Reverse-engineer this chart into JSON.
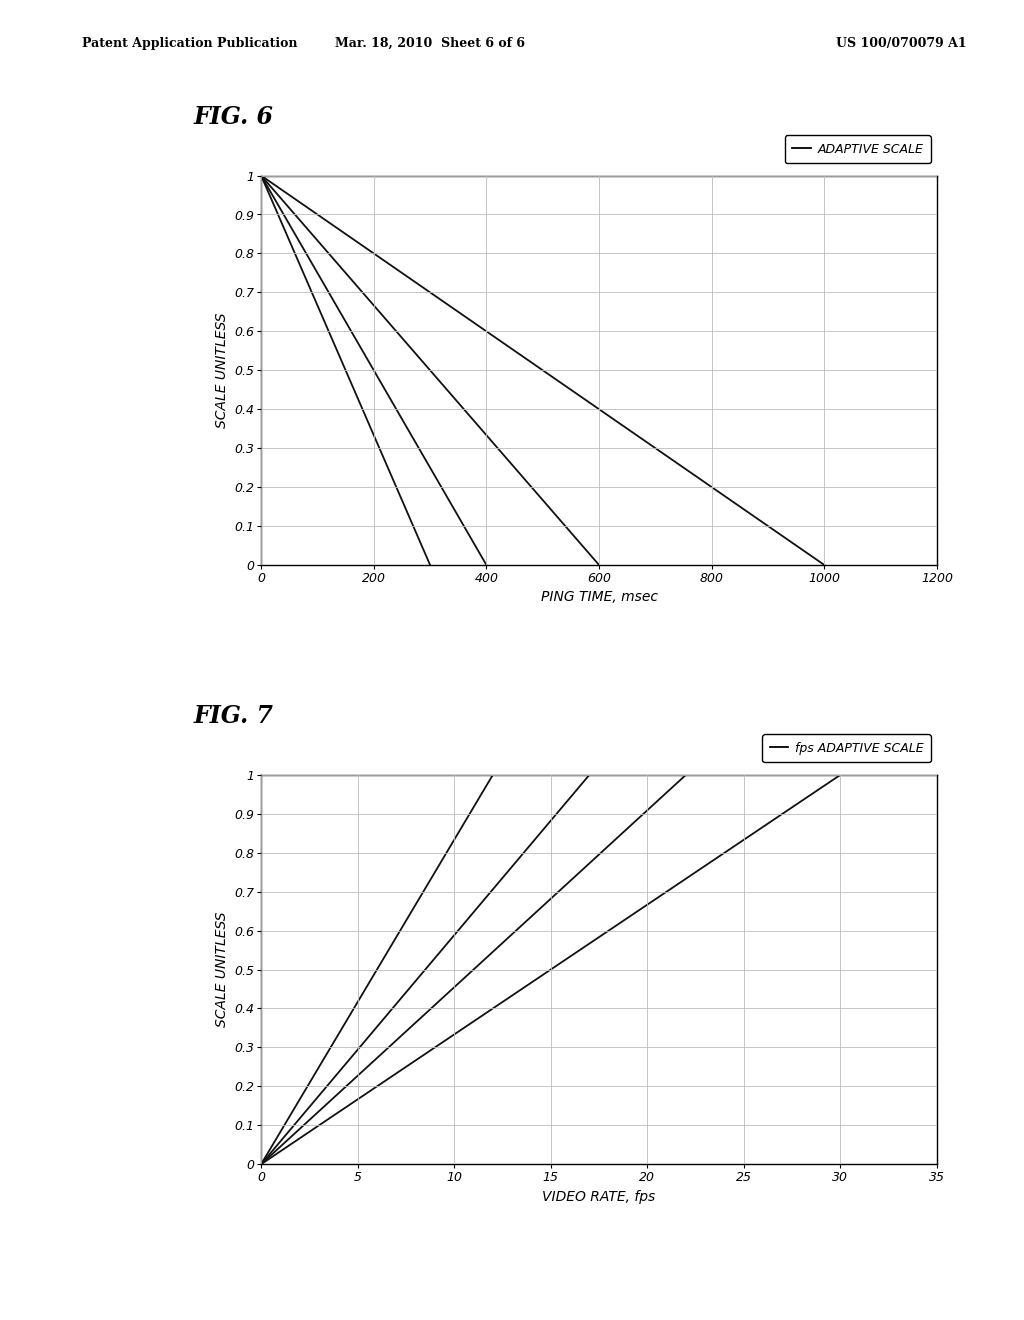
{
  "fig6": {
    "title": "FIG. 6",
    "legend_label": "ADAPTIVE SCALE",
    "xlabel": "PING TIME, msec",
    "ylabel": "SCALE UNITLESS",
    "xlim": [
      0,
      1200
    ],
    "ylim": [
      0,
      1
    ],
    "xticks": [
      0,
      200,
      400,
      600,
      800,
      1000,
      1200
    ],
    "yticks": [
      0,
      0.1,
      0.2,
      0.3,
      0.4,
      0.5,
      0.6,
      0.7,
      0.8,
      0.9,
      1.0
    ],
    "lines": [
      {
        "x": [
          0,
          300
        ],
        "y": [
          1,
          0
        ]
      },
      {
        "x": [
          0,
          400
        ],
        "y": [
          1,
          0
        ]
      },
      {
        "x": [
          0,
          600
        ],
        "y": [
          1,
          0
        ]
      },
      {
        "x": [
          0,
          1000
        ],
        "y": [
          1,
          0
        ]
      }
    ]
  },
  "fig7": {
    "title": "FIG. 7",
    "legend_label": "fps ADAPTIVE SCALE",
    "xlabel": "VIDEO RATE, fps",
    "ylabel": "SCALE UNITLESS",
    "xlim": [
      0,
      35
    ],
    "ylim": [
      0,
      1
    ],
    "xticks": [
      0,
      5,
      10,
      15,
      20,
      25,
      30,
      35
    ],
    "yticks": [
      0,
      0.1,
      0.2,
      0.3,
      0.4,
      0.5,
      0.6,
      0.7,
      0.8,
      0.9,
      1.0
    ],
    "lines": [
      {
        "x": [
          0,
          12
        ],
        "y": [
          0,
          1
        ]
      },
      {
        "x": [
          0,
          17
        ],
        "y": [
          0,
          1
        ]
      },
      {
        "x": [
          0,
          22
        ],
        "y": [
          0,
          1
        ]
      },
      {
        "x": [
          0,
          30
        ],
        "y": [
          0,
          1
        ]
      }
    ]
  },
  "background_color": "#ffffff",
  "line_color": "#111111",
  "grid_color": "#bbbbbb",
  "header_left": "Patent Application Publication",
  "header_mid": "Mar. 18, 2010  Sheet 6 of 6",
  "header_right": "US 100/070079 A1"
}
